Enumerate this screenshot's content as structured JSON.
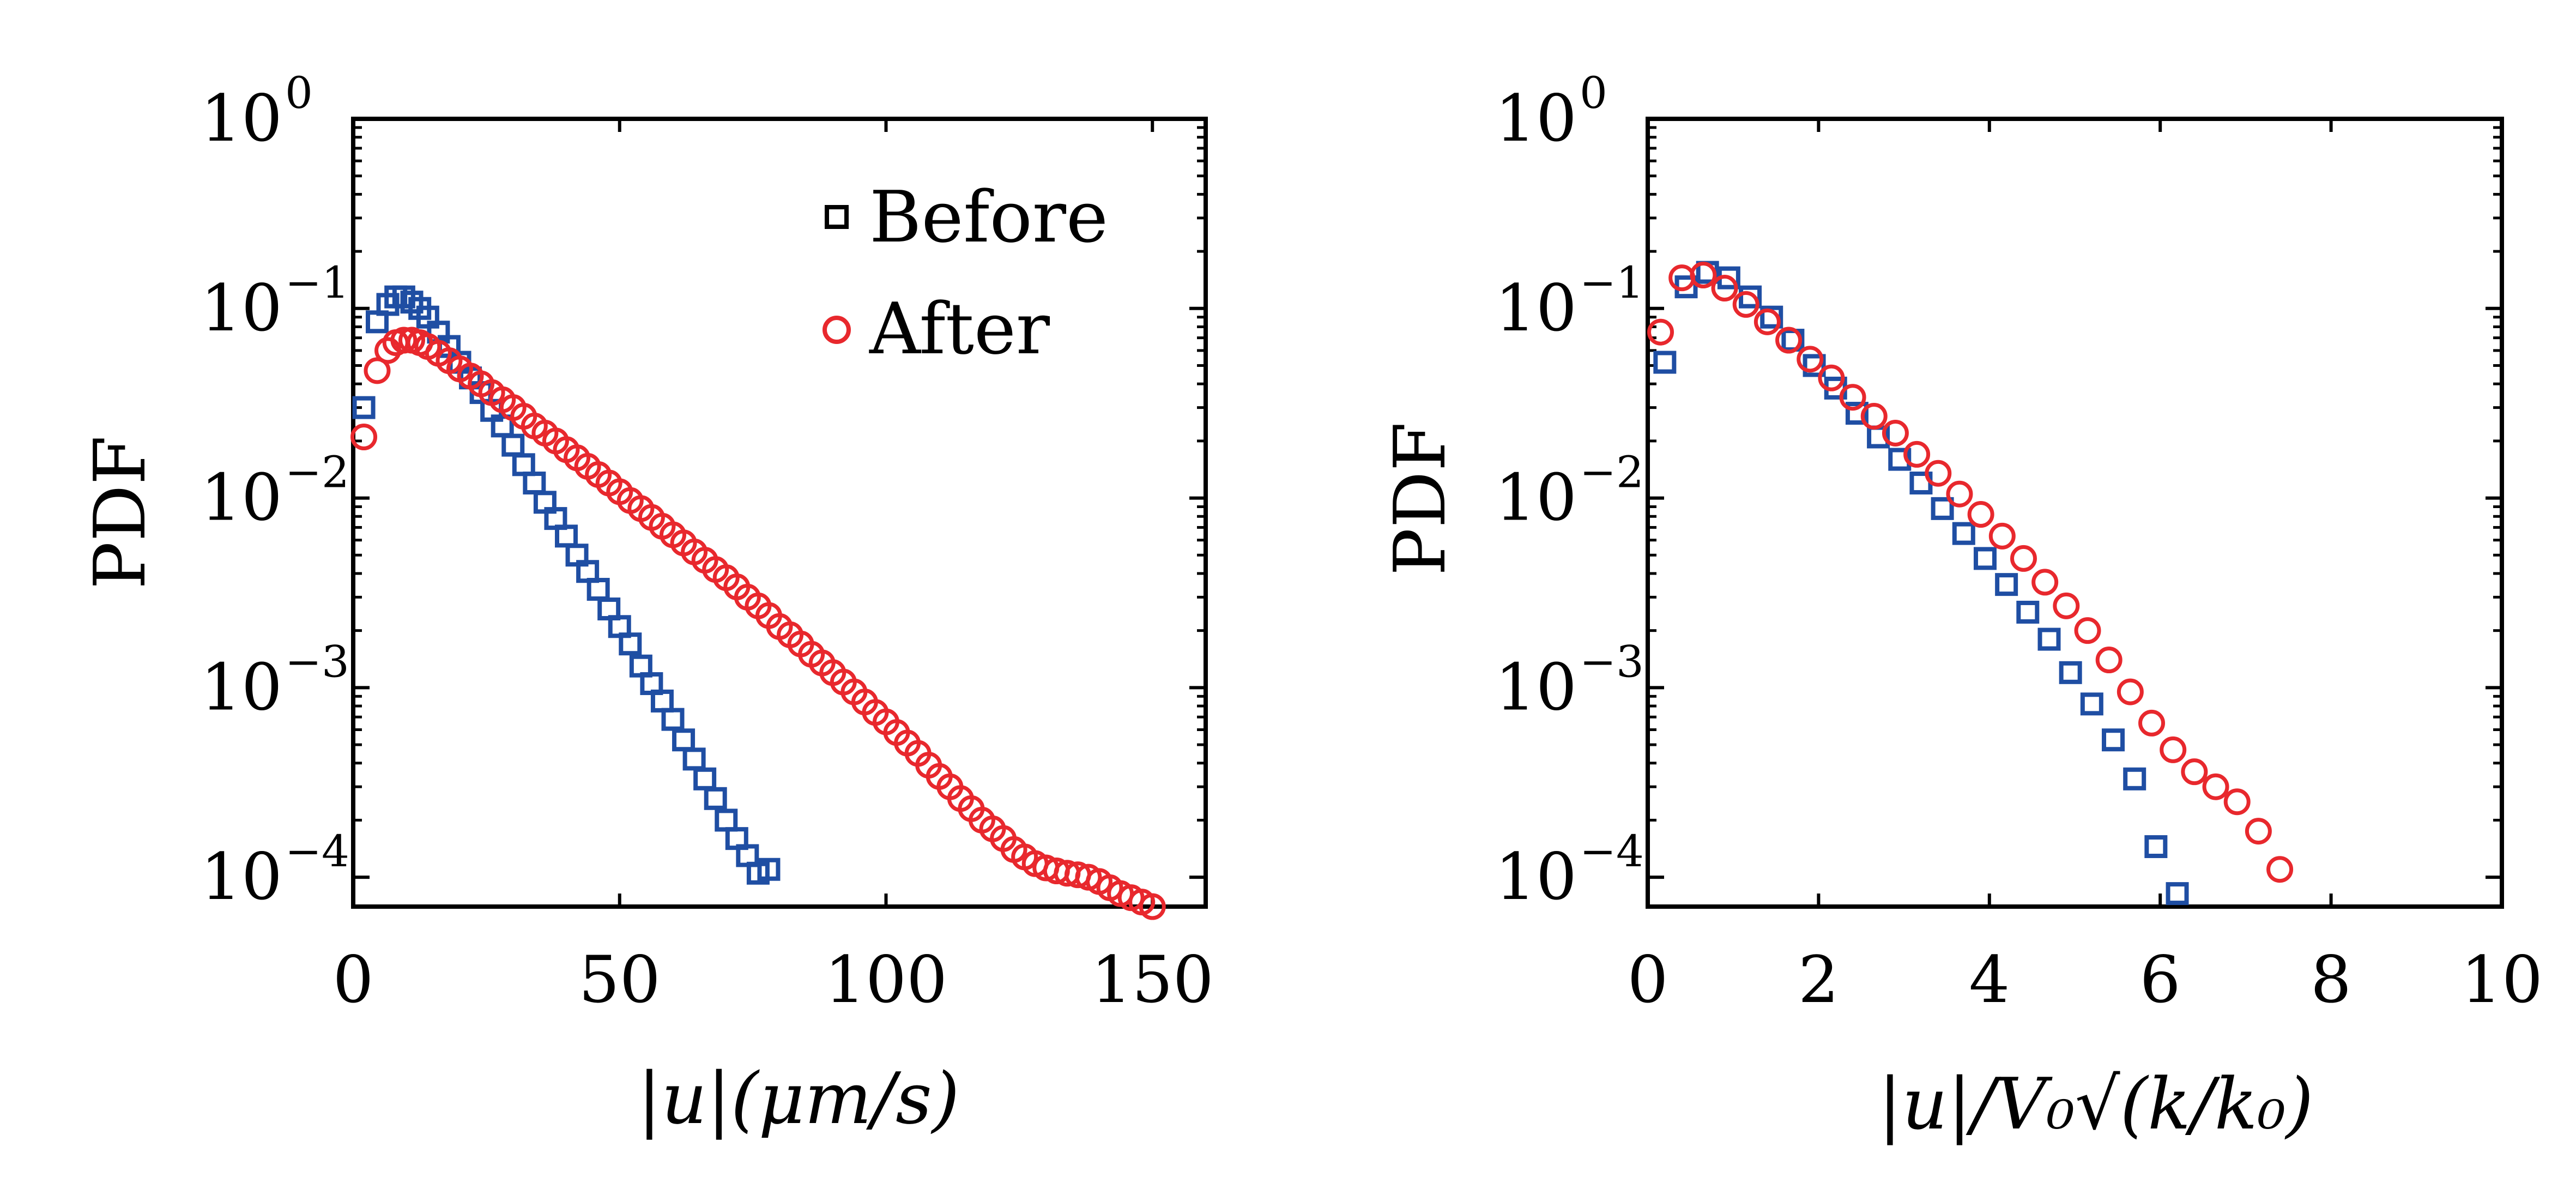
{
  "colors": {
    "before": "#1f4ea3",
    "after": "#e8282d",
    "legend_before_marker": "#000000",
    "axes": "#000000"
  },
  "chart_data": [
    {
      "type": "scatter",
      "title": "",
      "xlabel": "|u|(μm/s)",
      "ylabel": "PDF",
      "xlim": [
        0,
        160
      ],
      "ylim": [
        7e-05,
        1
      ],
      "yscale": "log",
      "xticks": [
        0,
        50,
        100,
        150
      ],
      "yticks": [
        {
          "mant": "10",
          "exp": "0",
          "v": 1
        },
        {
          "mant": "10",
          "exp": "−1",
          "v": 0.1
        },
        {
          "mant": "10",
          "exp": "−2",
          "v": 0.01
        },
        {
          "mant": "10",
          "exp": "−3",
          "v": 0.001
        },
        {
          "mant": "10",
          "exp": "−4",
          "v": 0.0001
        }
      ],
      "grid": false,
      "legend": {
        "placement": "top-right",
        "entries": [
          {
            "label": "Before",
            "marker": "square"
          },
          {
            "label": "After",
            "marker": "circle"
          }
        ]
      },
      "series": [
        {
          "name": "Before",
          "marker": "square",
          "x": [
            2,
            4.5,
            6.5,
            8,
            9.5,
            11,
            12.5,
            14,
            16,
            18,
            20,
            22,
            24,
            26,
            28,
            30,
            32,
            34,
            36,
            38,
            40,
            42,
            44,
            46,
            48,
            50,
            52,
            54,
            56,
            58,
            60,
            62,
            64,
            66,
            68,
            70,
            72,
            74,
            76,
            78
          ],
          "y": [
            0.03,
            0.085,
            0.105,
            0.115,
            0.115,
            0.108,
            0.1,
            0.09,
            0.075,
            0.063,
            0.052,
            0.043,
            0.036,
            0.029,
            0.024,
            0.019,
            0.015,
            0.012,
            0.0095,
            0.0078,
            0.0063,
            0.005,
            0.0041,
            0.0033,
            0.0026,
            0.0021,
            0.0017,
            0.0013,
            0.00105,
            0.00085,
            0.00068,
            0.00053,
            0.00042,
            0.00033,
            0.00026,
            0.0002,
            0.00016,
            0.00013,
            0.000105,
            0.00011
          ]
        },
        {
          "name": "After",
          "marker": "circle",
          "x": [
            2,
            4.5,
            6.5,
            8,
            9.5,
            11,
            12.5,
            14,
            16,
            18,
            20,
            22,
            24,
            26,
            28,
            30,
            32,
            34,
            36,
            38,
            40,
            42,
            44,
            46,
            48,
            50,
            52,
            54,
            56,
            58,
            60,
            62,
            64,
            66,
            68,
            70,
            72,
            74,
            76,
            78,
            80,
            82,
            84,
            86,
            88,
            90,
            92,
            94,
            96,
            98,
            100,
            102,
            104,
            106,
            108,
            110,
            112,
            114,
            116,
            118,
            120,
            122,
            124,
            126,
            128,
            130,
            132,
            134,
            136,
            138,
            140,
            142,
            144,
            146,
            148,
            150
          ],
          "y": [
            0.021,
            0.047,
            0.06,
            0.066,
            0.068,
            0.068,
            0.066,
            0.063,
            0.058,
            0.053,
            0.048,
            0.044,
            0.04,
            0.036,
            0.033,
            0.03,
            0.027,
            0.024,
            0.022,
            0.02,
            0.018,
            0.0163,
            0.0147,
            0.0133,
            0.012,
            0.0108,
            0.0097,
            0.0088,
            0.0079,
            0.0071,
            0.0064,
            0.0058,
            0.0052,
            0.0047,
            0.0042,
            0.0038,
            0.0034,
            0.003,
            0.0027,
            0.0024,
            0.0021,
            0.0019,
            0.0017,
            0.0015,
            0.00135,
            0.0012,
            0.00107,
            0.00095,
            0.00084,
            0.00074,
            0.00066,
            0.00058,
            0.00051,
            0.00045,
            0.00039,
            0.00034,
            0.0003,
            0.00026,
            0.00023,
            0.0002,
            0.00018,
            0.00016,
            0.00014,
            0.000128,
            0.000118,
            0.000112,
            0.000108,
            0.000105,
            0.000103,
            0.0001,
            9.5e-05,
            8.8e-05,
            8.2e-05,
            7.8e-05,
            7.4e-05,
            7e-05
          ]
        }
      ]
    },
    {
      "type": "scatter",
      "title": "",
      "xlabel": "|u|/V₀√(k/k₀)",
      "ylabel": "PDF",
      "xlim": [
        0,
        10
      ],
      "ylim": [
        7e-05,
        1
      ],
      "yscale": "log",
      "xticks": [
        0,
        2,
        4,
        6,
        8,
        10
      ],
      "yticks": [
        {
          "mant": "10",
          "exp": "0",
          "v": 1
        },
        {
          "mant": "10",
          "exp": "−1",
          "v": 0.1
        },
        {
          "mant": "10",
          "exp": "−2",
          "v": 0.01
        },
        {
          "mant": "10",
          "exp": "−3",
          "v": 0.001
        },
        {
          "mant": "10",
          "exp": "−4",
          "v": 0.0001
        }
      ],
      "grid": false,
      "series": [
        {
          "name": "Before",
          "marker": "square",
          "x": [
            0.2,
            0.45,
            0.7,
            0.95,
            1.2,
            1.45,
            1.7,
            1.95,
            2.2,
            2.45,
            2.7,
            2.95,
            3.2,
            3.45,
            3.7,
            3.95,
            4.2,
            4.45,
            4.7,
            4.95,
            5.2,
            5.45,
            5.7,
            5.95,
            6.2
          ],
          "y": [
            0.052,
            0.13,
            0.155,
            0.145,
            0.115,
            0.09,
            0.068,
            0.05,
            0.038,
            0.028,
            0.021,
            0.016,
            0.012,
            0.0088,
            0.0065,
            0.0048,
            0.0035,
            0.0025,
            0.0018,
            0.0012,
            0.00082,
            0.00053,
            0.00033,
            0.000145,
            8.2e-05
          ]
        },
        {
          "name": "After",
          "marker": "circle",
          "x": [
            0.15,
            0.4,
            0.65,
            0.9,
            1.15,
            1.4,
            1.65,
            1.9,
            2.15,
            2.4,
            2.65,
            2.9,
            3.15,
            3.4,
            3.65,
            3.9,
            4.15,
            4.4,
            4.65,
            4.9,
            5.15,
            5.4,
            5.65,
            5.9,
            6.15,
            6.4,
            6.65,
            6.9,
            7.15,
            7.4
          ],
          "y": [
            0.075,
            0.145,
            0.15,
            0.128,
            0.105,
            0.085,
            0.068,
            0.054,
            0.043,
            0.034,
            0.027,
            0.022,
            0.017,
            0.0135,
            0.0105,
            0.0082,
            0.0063,
            0.0048,
            0.0036,
            0.0027,
            0.002,
            0.0014,
            0.00095,
            0.00065,
            0.00047,
            0.00036,
            0.0003,
            0.00025,
            0.000175,
            0.00011
          ]
        }
      ]
    }
  ]
}
